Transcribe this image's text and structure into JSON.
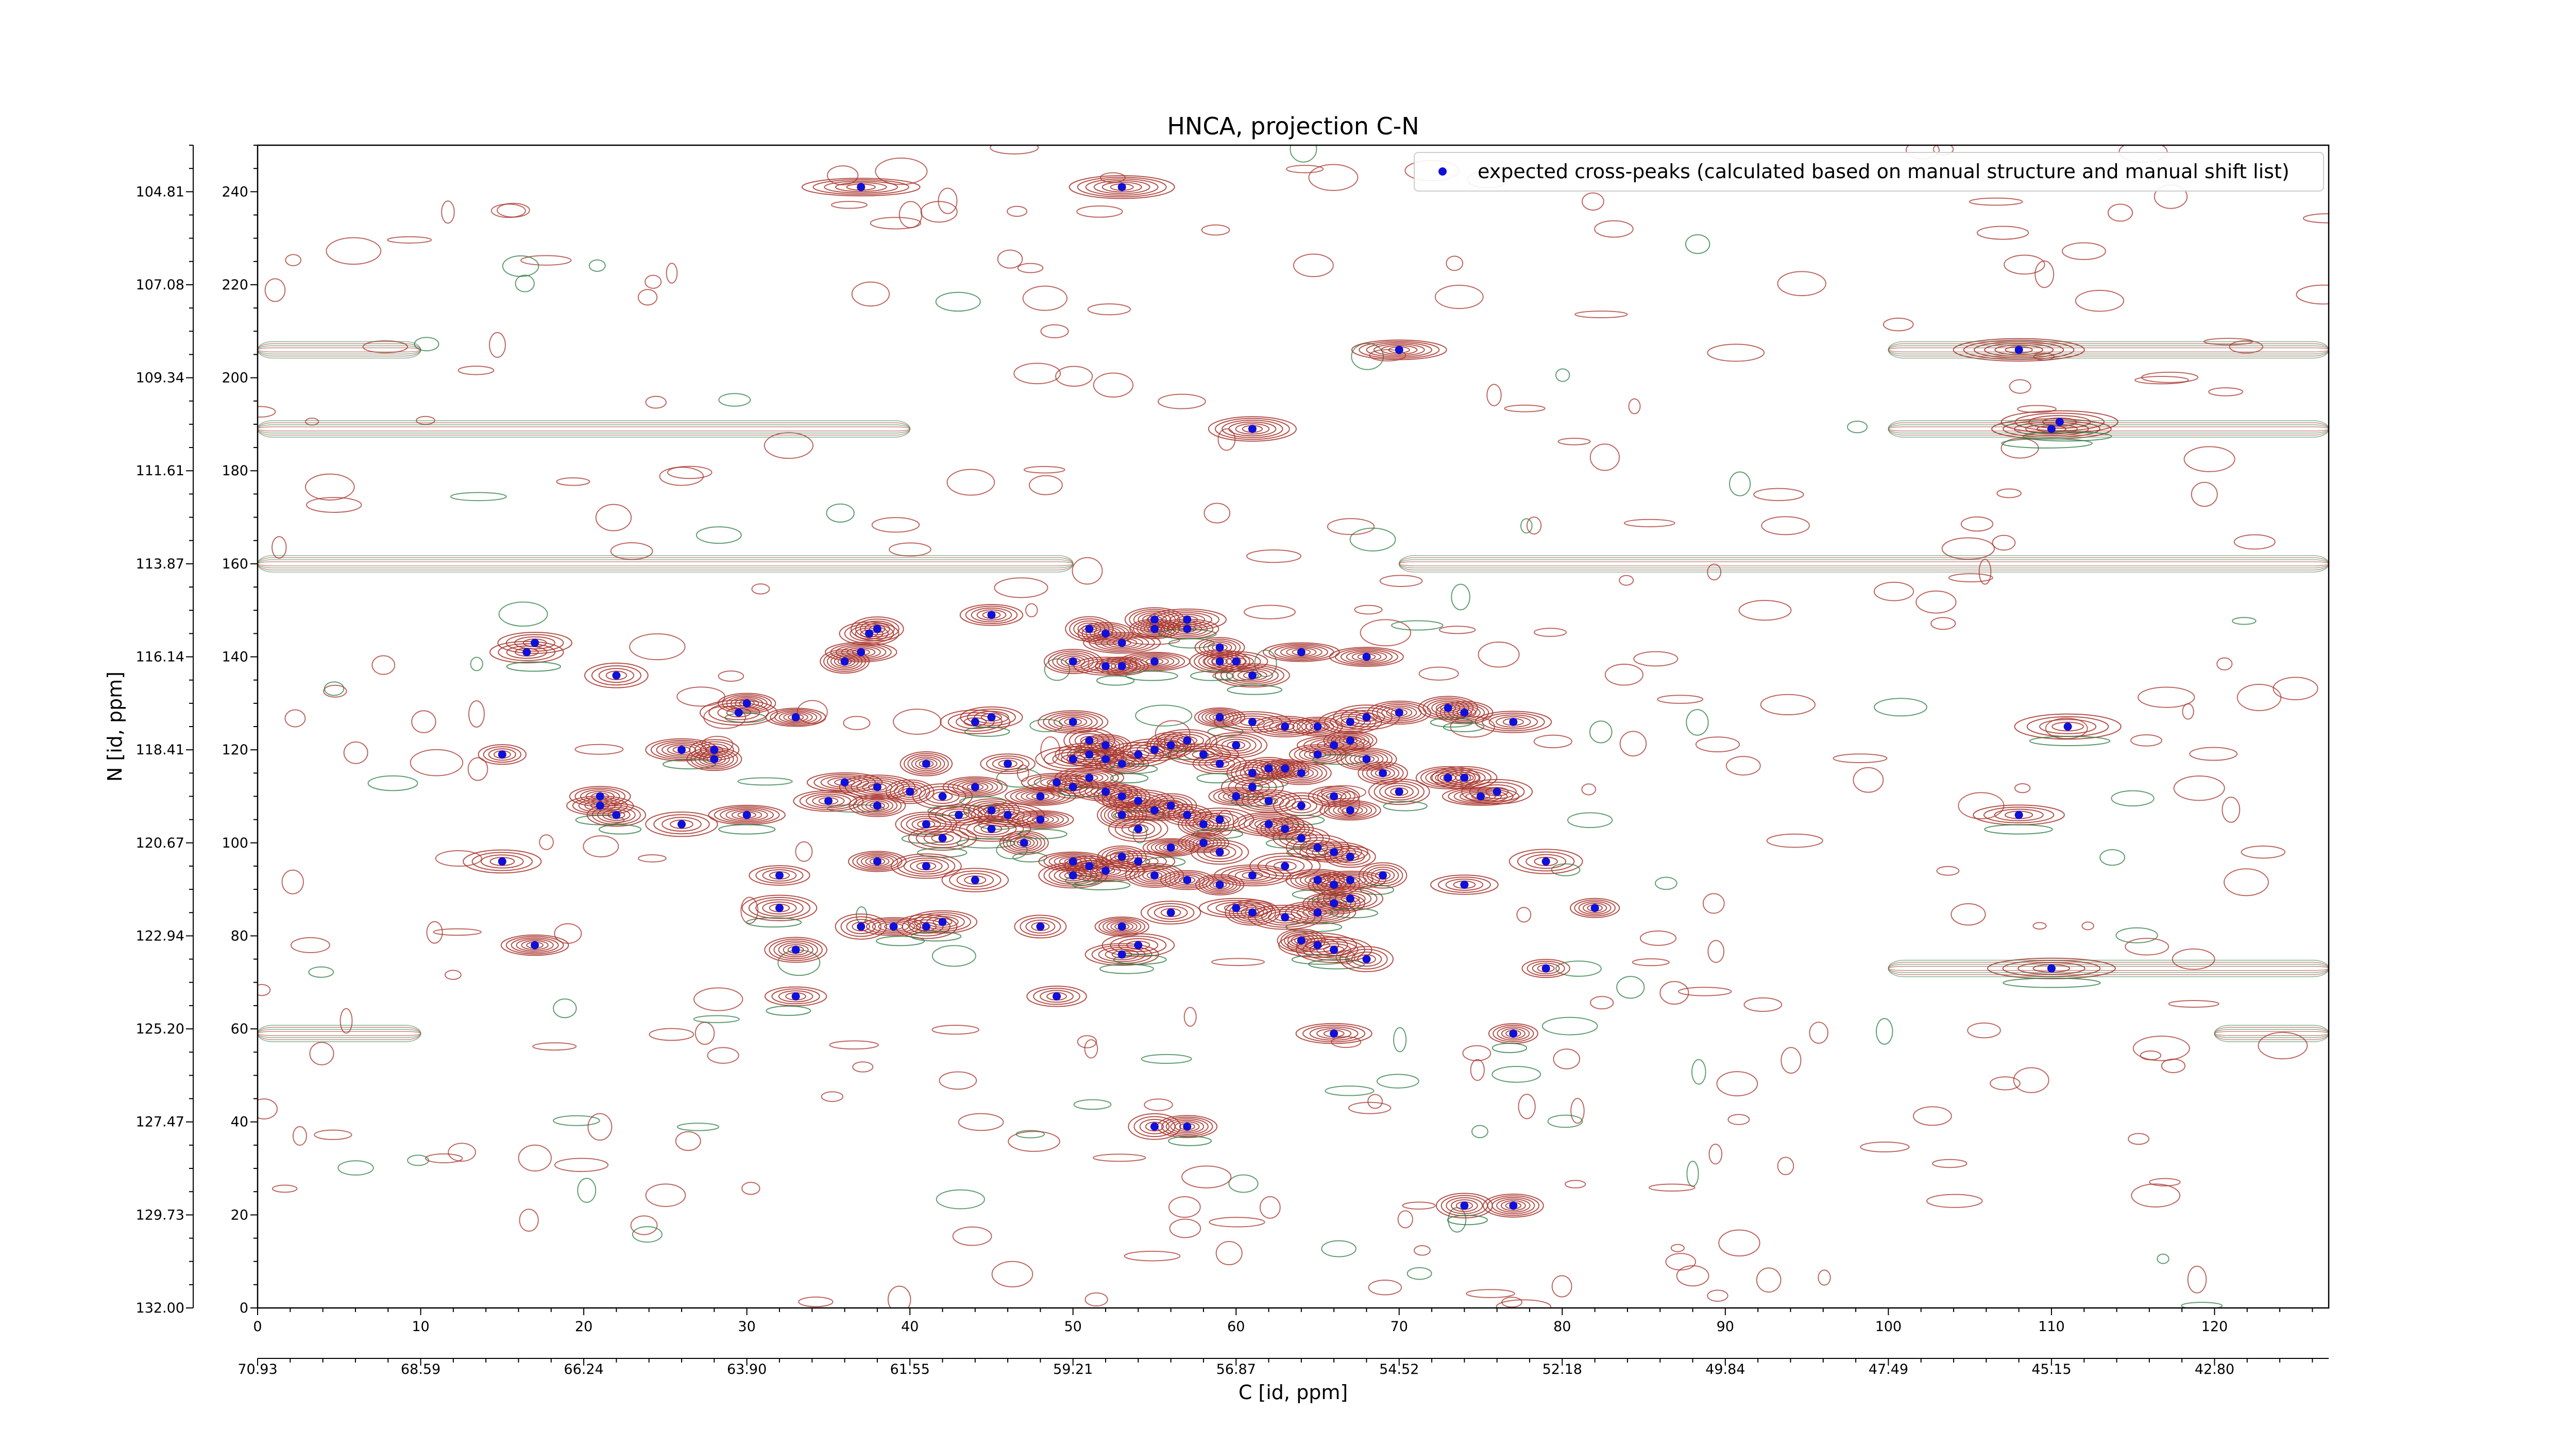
{
  "chart_data": {
    "type": "scatter",
    "title": "HNCA, projection C-N",
    "xlabel": "C [id, ppm]",
    "ylabel": "N [id, ppm]",
    "xlim": [
      0,
      127
    ],
    "ylim": [
      0,
      250
    ],
    "x_index_ticks": [
      "0",
      "10",
      "20",
      "30",
      "40",
      "50",
      "60",
      "70",
      "80",
      "90",
      "100",
      "110",
      "120"
    ],
    "x_ppm_ticks": [
      "70.93",
      "68.59",
      "66.24",
      "63.90",
      "61.55",
      "59.21",
      "56.87",
      "54.52",
      "52.18",
      "49.84",
      "47.49",
      "45.15",
      "42.80"
    ],
    "y_index_ticks": [
      "0",
      "20",
      "40",
      "60",
      "80",
      "100",
      "120",
      "140",
      "160",
      "180",
      "200",
      "220",
      "240"
    ],
    "y_ppm_ticks": [
      "132.00",
      "129.73",
      "127.47",
      "125.20",
      "122.94",
      "120.67",
      "118.41",
      "116.14",
      "113.87",
      "111.61",
      "109.34",
      "107.08",
      "104.81"
    ],
    "grid": false,
    "legend_position": "top-right",
    "legend_label": "expected cross-peaks (calculated based on manual structure and manual shift list)",
    "colors": {
      "peak_marker": "#1010d8",
      "positive_contour": "#a8342c",
      "negative_contour": "#2e7d43"
    },
    "peaks": [
      [
        37,
        241
      ],
      [
        53,
        241
      ],
      [
        70,
        206
      ],
      [
        108,
        206
      ],
      [
        61,
        189
      ],
      [
        110,
        189
      ],
      [
        110.5,
        190.5
      ],
      [
        45,
        149
      ],
      [
        51,
        146
      ],
      [
        52,
        145
      ],
      [
        53,
        143
      ],
      [
        55,
        148
      ],
      [
        55,
        146
      ],
      [
        57,
        148
      ],
      [
        57,
        146
      ],
      [
        59,
        142
      ],
      [
        60,
        139
      ],
      [
        61,
        136
      ],
      [
        64,
        141
      ],
      [
        38,
        146
      ],
      [
        37.5,
        145
      ],
      [
        37,
        141
      ],
      [
        36,
        139
      ],
      [
        50,
        139
      ],
      [
        52,
        138
      ],
      [
        53,
        138
      ],
      [
        55,
        139
      ],
      [
        59,
        139
      ],
      [
        68,
        140
      ],
      [
        17,
        143
      ],
      [
        16.5,
        141
      ],
      [
        22,
        136
      ],
      [
        30,
        130
      ],
      [
        29.5,
        128
      ],
      [
        33,
        127
      ],
      [
        44,
        126
      ],
      [
        45,
        127
      ],
      [
        59,
        127
      ],
      [
        61,
        126
      ],
      [
        63,
        125
      ],
      [
        65,
        125
      ],
      [
        67,
        126
      ],
      [
        68,
        127
      ],
      [
        70,
        128
      ],
      [
        74,
        128
      ],
      [
        77,
        126
      ],
      [
        73,
        129
      ],
      [
        111,
        125
      ],
      [
        26,
        120
      ],
      [
        28,
        120
      ],
      [
        28,
        118
      ],
      [
        15,
        119
      ],
      [
        41,
        117
      ],
      [
        46,
        117
      ],
      [
        50,
        126
      ],
      [
        51,
        122
      ],
      [
        52,
        121
      ],
      [
        51,
        119
      ],
      [
        50,
        118
      ],
      [
        52,
        118
      ],
      [
        53,
        117
      ],
      [
        54,
        119
      ],
      [
        55,
        120
      ],
      [
        56,
        121
      ],
      [
        57,
        122
      ],
      [
        58,
        119
      ],
      [
        59,
        117
      ],
      [
        60,
        121
      ],
      [
        61,
        115
      ],
      [
        62,
        116
      ],
      [
        63,
        116
      ],
      [
        64,
        115
      ],
      [
        65,
        119
      ],
      [
        66,
        121
      ],
      [
        67,
        122
      ],
      [
        68,
        118
      ],
      [
        69,
        115
      ],
      [
        73,
        114
      ],
      [
        74,
        114
      ],
      [
        75,
        110
      ],
      [
        76,
        111
      ],
      [
        70,
        111
      ],
      [
        36,
        113
      ],
      [
        38,
        112
      ],
      [
        40,
        111
      ],
      [
        42,
        110
      ],
      [
        44,
        112
      ],
      [
        45,
        107
      ],
      [
        48,
        110
      ],
      [
        46,
        106
      ],
      [
        49,
        113
      ],
      [
        50,
        112
      ],
      [
        51,
        114
      ],
      [
        52,
        111
      ],
      [
        53,
        110
      ],
      [
        54,
        109
      ],
      [
        55,
        107
      ],
      [
        56,
        108
      ],
      [
        57,
        106
      ],
      [
        58,
        104
      ],
      [
        59,
        105
      ],
      [
        60,
        110
      ],
      [
        61,
        112
      ],
      [
        62,
        109
      ],
      [
        64,
        108
      ],
      [
        66,
        110
      ],
      [
        67,
        107
      ],
      [
        21,
        110
      ],
      [
        21,
        108
      ],
      [
        22,
        106
      ],
      [
        26,
        104
      ],
      [
        30,
        106
      ],
      [
        35,
        109
      ],
      [
        38,
        108
      ],
      [
        41,
        104
      ],
      [
        42,
        101
      ],
      [
        43,
        106
      ],
      [
        45,
        103
      ],
      [
        47,
        100
      ],
      [
        48,
        105
      ],
      [
        53,
        106
      ],
      [
        54,
        103
      ],
      [
        56,
        99
      ],
      [
        58,
        100
      ],
      [
        59,
        98
      ],
      [
        62,
        104
      ],
      [
        63,
        103
      ],
      [
        64,
        101
      ],
      [
        65,
        99
      ],
      [
        66,
        98
      ],
      [
        67,
        97
      ],
      [
        108,
        106
      ],
      [
        15,
        96
      ],
      [
        32,
        93
      ],
      [
        38,
        96
      ],
      [
        41,
        95
      ],
      [
        44,
        92
      ],
      [
        50,
        96
      ],
      [
        50,
        93
      ],
      [
        51,
        95
      ],
      [
        52,
        94
      ],
      [
        53,
        97
      ],
      [
        54,
        96
      ],
      [
        55,
        93
      ],
      [
        57,
        92
      ],
      [
        59,
        91
      ],
      [
        61,
        93
      ],
      [
        63,
        95
      ],
      [
        65,
        92
      ],
      [
        66,
        91
      ],
      [
        67,
        92
      ],
      [
        69,
        93
      ],
      [
        74,
        91
      ],
      [
        79,
        96
      ],
      [
        82,
        86
      ],
      [
        66,
        87
      ],
      [
        65,
        85
      ],
      [
        67,
        88
      ],
      [
        60,
        86
      ],
      [
        61,
        85
      ],
      [
        56,
        85
      ],
      [
        48,
        82
      ],
      [
        53,
        82
      ],
      [
        32,
        86
      ],
      [
        37,
        82
      ],
      [
        39,
        82
      ],
      [
        41,
        82
      ],
      [
        42,
        83
      ],
      [
        33,
        77
      ],
      [
        17,
        78
      ],
      [
        53,
        76
      ],
      [
        54,
        78
      ],
      [
        63,
        84
      ],
      [
        64,
        79
      ],
      [
        65,
        78
      ],
      [
        66,
        77
      ],
      [
        68,
        75
      ],
      [
        79,
        73
      ],
      [
        110,
        73
      ],
      [
        33,
        67
      ],
      [
        49,
        67
      ],
      [
        66,
        59
      ],
      [
        77,
        59
      ],
      [
        55,
        39
      ],
      [
        57,
        39
      ],
      [
        74,
        22
      ],
      [
        77,
        22
      ]
    ]
  }
}
